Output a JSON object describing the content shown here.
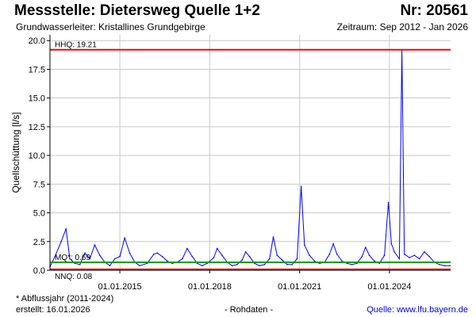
{
  "header": {
    "title": "Messstelle: Dietersweg Quelle 1+2",
    "number": "Nr: 20561",
    "subtitle": "Grundwasserleiter: Kristallines Grundgebirge",
    "period": "Zeitraum: Sep 2012 - Jan 2026"
  },
  "footer": {
    "note": "* Abflussjahr (2011-2024)",
    "created": "erstellt:  16.01.2026",
    "rawdata": "- Rohdaten -",
    "source": "Quelle:  www.lfu.bayern.de"
  },
  "colors": {
    "series": "#0000ff",
    "hhq": "#ff0000",
    "mq": "#00a000",
    "nnq": "#ff0000",
    "axis": "#000000",
    "grid": "#c8c8c8"
  },
  "chart_data": {
    "type": "line",
    "title": "",
    "ylabel": "Quellschüttung [l/s]",
    "xlabel": "",
    "xlim": [
      "2012-09-01",
      "2026-01-16"
    ],
    "ylim": [
      0,
      20.5
    ],
    "y_ticks": [
      0.0,
      2.5,
      5.0,
      7.5,
      10.0,
      12.5,
      15.0,
      17.5,
      20.0
    ],
    "x_ticks": [
      "2015-01-01",
      "2018-01-01",
      "2021-01-01",
      "2024-01-01"
    ],
    "x_tick_labels": [
      "01.01.2015",
      "01.01.2018",
      "01.01.2021",
      "01.01.2024"
    ],
    "grid": true,
    "reference_lines": [
      {
        "label": "HHQ: 19.21",
        "value": 19.21
      },
      {
        "label": "MQ*: 0.69",
        "value": 0.69
      },
      {
        "label": "NNQ: 0.08",
        "value": 0.08
      }
    ],
    "series": [
      {
        "x": [
          "2012-09-01",
          "2012-11-01",
          "2013-01-15",
          "2013-03-15",
          "2013-05-01",
          "2013-07-01",
          "2013-09-01",
          "2013-11-01",
          "2014-01-01",
          "2014-03-01",
          "2014-05-01",
          "2014-07-01",
          "2014-09-01",
          "2014-11-01",
          "2015-01-01",
          "2015-03-01",
          "2015-05-01",
          "2015-07-01",
          "2015-09-01",
          "2015-12-01",
          "2016-02-20",
          "2016-04-01",
          "2016-06-01",
          "2016-08-01",
          "2016-10-01",
          "2016-12-01",
          "2017-02-01",
          "2017-04-01",
          "2017-06-01",
          "2017-08-01",
          "2017-10-01",
          "2017-12-01",
          "2018-02-20",
          "2018-04-01",
          "2018-06-01",
          "2018-08-01",
          "2018-10-01",
          "2018-12-01",
          "2019-02-01",
          "2019-03-15",
          "2019-05-01",
          "2019-07-01",
          "2019-09-01",
          "2019-11-01",
          "2020-01-01",
          "2020-02-15",
          "2020-04-01",
          "2020-06-01",
          "2020-08-01",
          "2020-10-01",
          "2020-12-01",
          "2021-01-20",
          "2021-03-01",
          "2021-05-01",
          "2021-07-01",
          "2021-09-01",
          "2021-11-01",
          "2022-01-01",
          "2022-02-15",
          "2022-04-01",
          "2022-06-01",
          "2022-08-01",
          "2022-10-01",
          "2022-12-01",
          "2023-02-01",
          "2023-03-15",
          "2023-05-01",
          "2023-07-01",
          "2023-09-01",
          "2023-11-01",
          "2023-12-20",
          "2024-01-25",
          "2024-03-01",
          "2024-05-01",
          "2024-06-01",
          "2024-07-01",
          "2024-09-01",
          "2024-11-01",
          "2025-01-01",
          "2025-03-01",
          "2025-05-01",
          "2025-07-01",
          "2025-09-01",
          "2025-11-01",
          "2026-01-10"
        ],
        "y": [
          0.3,
          1.2,
          2.5,
          3.6,
          1.0,
          0.6,
          0.5,
          1.5,
          1.0,
          2.2,
          1.3,
          0.7,
          0.4,
          1.0,
          1.2,
          2.8,
          1.5,
          0.7,
          0.4,
          0.6,
          1.4,
          1.5,
          1.2,
          0.8,
          0.6,
          0.7,
          1.0,
          1.9,
          1.2,
          0.6,
          0.4,
          0.6,
          1.1,
          1.9,
          1.3,
          0.7,
          0.4,
          0.5,
          0.9,
          1.6,
          1.2,
          0.6,
          0.4,
          0.5,
          1.0,
          2.9,
          1.3,
          0.9,
          0.5,
          0.5,
          1.0,
          7.3,
          2.2,
          1.3,
          0.8,
          0.6,
          0.7,
          1.4,
          2.3,
          1.4,
          0.8,
          0.6,
          0.5,
          0.6,
          1.2,
          2.0,
          1.3,
          0.8,
          0.6,
          1.3,
          5.9,
          2.3,
          1.6,
          1.0,
          19.2,
          1.4,
          1.1,
          1.3,
          1.0,
          1.6,
          1.2,
          0.7,
          0.5,
          0.4,
          0.4
        ]
      }
    ]
  }
}
